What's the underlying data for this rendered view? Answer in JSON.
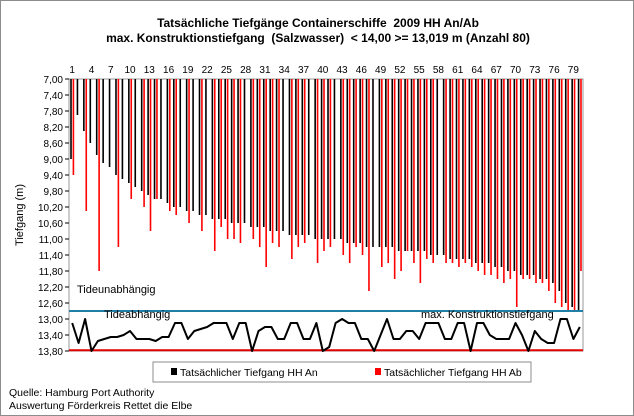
{
  "chart_data": {
    "type": "bar",
    "title": "Tatsächliche Tiefgänge Containerschiffe  2009 HH An/Ab",
    "subtitle": "max. Konstruktionstiefgang  (Salzwasser)  < 14,00 >= 13,019 m (Anzahl 80)",
    "xlabel": "",
    "ylabel": "Tiefgang (m)",
    "ylim": [
      7.0,
      13.8
    ],
    "y_reversed": true,
    "y_ticks": [
      "7,00",
      "7,40",
      "7,80",
      "8,20",
      "8,60",
      "9,00",
      "9,40",
      "9,80",
      "10,20",
      "10,60",
      "11,00",
      "11,40",
      "11,80",
      "12,20",
      "12,60",
      "13,00",
      "13,40",
      "13,80"
    ],
    "x_ticks": [
      1,
      4,
      7,
      10,
      13,
      16,
      19,
      22,
      25,
      28,
      31,
      34,
      37,
      40,
      43,
      46,
      49,
      52,
      55,
      58,
      61,
      64,
      67,
      70,
      73,
      76,
      79
    ],
    "categories": [
      1,
      2,
      3,
      4,
      5,
      6,
      7,
      8,
      9,
      10,
      11,
      12,
      13,
      14,
      15,
      16,
      17,
      18,
      19,
      20,
      21,
      22,
      23,
      24,
      25,
      26,
      27,
      28,
      29,
      30,
      31,
      32,
      33,
      34,
      35,
      36,
      37,
      38,
      39,
      40,
      41,
      42,
      43,
      44,
      45,
      46,
      47,
      48,
      49,
      50,
      51,
      52,
      53,
      54,
      55,
      56,
      57,
      58,
      59,
      60,
      61,
      62,
      63,
      64,
      65,
      66,
      67,
      68,
      69,
      70,
      71,
      72,
      73,
      74,
      75,
      76,
      77,
      78,
      79,
      80
    ],
    "series": [
      {
        "name": "Tatsächlicher Tiefgang HH An",
        "color": "#000000",
        "values": [
          9.0,
          7.9,
          8.3,
          8.6,
          8.9,
          9.1,
          9.2,
          9.4,
          9.5,
          9.6,
          9.7,
          9.8,
          9.9,
          10.0,
          10.0,
          10.1,
          10.2,
          10.2,
          10.3,
          10.3,
          10.4,
          10.4,
          10.5,
          10.5,
          10.5,
          10.6,
          10.6,
          10.6,
          10.7,
          10.7,
          10.7,
          10.8,
          10.8,
          10.8,
          10.9,
          10.9,
          10.9,
          10.9,
          11.0,
          11.0,
          11.0,
          11.0,
          11.0,
          11.1,
          11.1,
          11.1,
          11.2,
          11.2,
          11.2,
          11.2,
          11.2,
          11.3,
          11.3,
          11.3,
          11.3,
          11.3,
          11.4,
          11.4,
          11.4,
          11.5,
          11.5,
          11.5,
          11.5,
          11.6,
          11.6,
          11.6,
          11.7,
          11.7,
          11.8,
          11.8,
          11.9,
          11.9,
          11.9,
          12.0,
          12.0,
          12.1,
          12.3,
          12.6,
          12.7,
          12.8
        ]
      },
      {
        "name": "Tatsächlicher Tiefgang HH Ab",
        "color": "#ff0000",
        "values": [
          9.4,
          7.0,
          10.3,
          7.0,
          11.8,
          7.0,
          7.0,
          11.2,
          7.0,
          10.0,
          7.0,
          10.2,
          10.8,
          10.0,
          7.0,
          10.3,
          10.4,
          7.0,
          10.6,
          7.0,
          10.8,
          7.0,
          11.3,
          10.7,
          11.0,
          11.0,
          11.1,
          7.0,
          11.0,
          11.2,
          11.7,
          11.1,
          11.2,
          7.0,
          11.5,
          11.2,
          11.1,
          7.0,
          11.6,
          11.3,
          11.2,
          7.0,
          11.4,
          11.6,
          11.2,
          11.4,
          12.3,
          7.0,
          11.7,
          11.6,
          12.0,
          11.8,
          11.3,
          11.6,
          12.1,
          11.5,
          11.6,
          7.0,
          11.6,
          11.6,
          11.7,
          11.6,
          11.7,
          11.8,
          11.9,
          11.9,
          12.0,
          12.1,
          12.0,
          12.7,
          12.0,
          12.0,
          12.1,
          12.1,
          12.3,
          12.6,
          12.7,
          12.8,
          12.8,
          11.8
        ]
      }
    ],
    "reference_lines": [
      {
        "label": "Tideunabhängig",
        "value": 12.8,
        "color": "#1f7fa6"
      },
      {
        "label": "max. Konstruktionstiefgang",
        "value": 13.78,
        "color": "#e00000"
      }
    ],
    "tide_line": {
      "label": "Tideabhängig",
      "color": "#000000",
      "values": [
        13.1,
        13.6,
        13.0,
        13.8,
        13.55,
        13.5,
        13.45,
        13.45,
        13.4,
        13.3,
        13.5,
        13.5,
        13.5,
        13.55,
        13.45,
        13.45,
        13.1,
        13.1,
        13.5,
        13.3,
        13.25,
        13.2,
        13.1,
        13.1,
        13.1,
        13.5,
        13.1,
        13.1,
        13.8,
        13.3,
        13.2,
        13.2,
        13.5,
        13.5,
        13.1,
        13.1,
        13.5,
        13.5,
        13.1,
        13.8,
        13.7,
        13.1,
        13.0,
        13.1,
        13.1,
        13.5,
        13.5,
        13.8,
        13.4,
        13.0,
        13.5,
        13.5,
        13.3,
        13.3,
        13.5,
        13.1,
        13.1,
        13.1,
        13.5,
        13.5,
        13.1,
        13.1,
        13.8,
        13.1,
        13.1,
        13.4,
        13.5,
        13.5,
        13.5,
        13.1,
        13.4,
        13.8,
        13.3,
        13.5,
        13.6,
        13.6,
        13.0,
        13.0,
        13.5,
        13.2
      ]
    },
    "legend": {
      "placement": "bottom-center"
    },
    "grid": false
  },
  "source": {
    "line1": "Quelle: Hamburg Port Authority",
    "line2": "Auswertung Förderkreis Rettet die Elbe"
  }
}
